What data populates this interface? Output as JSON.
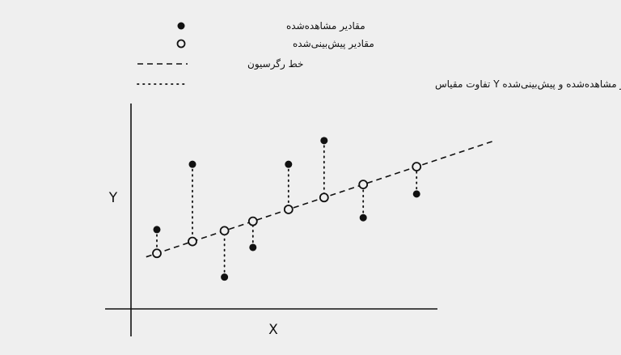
{
  "legend": {
    "observed": "مقادیر مشاهده‌شده",
    "predicted": "مقادیر پیش‌بینی‌شده",
    "regression": "خط رگرسیون",
    "residual": "بین مقادیر مشاهده‌شده و پیش‌بینی‌شده Y تفاوت مقیاس"
  },
  "axes": {
    "x_label": "X",
    "y_label": "Y"
  },
  "colors": {
    "ink": "#111111",
    "background": "#efefef"
  },
  "chart_data": {
    "type": "scatter",
    "xlabel": "X",
    "ylabel": "Y",
    "grid": false,
    "legend_position": "top",
    "regression_line": {
      "intercept": 0.7,
      "slope": 0.2,
      "x_range": [
        0.2,
        10.0
      ]
    },
    "points": [
      {
        "x": 0.5,
        "observed": 1.2,
        "predicted": 0.8
      },
      {
        "x": 1.5,
        "observed": 2.3,
        "predicted": 1.0
      },
      {
        "x": 2.4,
        "observed": 0.4,
        "predicted": 1.18
      },
      {
        "x": 3.2,
        "observed": 0.9,
        "predicted": 1.34
      },
      {
        "x": 4.2,
        "observed": 2.3,
        "predicted": 1.54
      },
      {
        "x": 5.2,
        "observed": 2.7,
        "predicted": 1.74
      },
      {
        "x": 6.3,
        "observed": 1.4,
        "predicted": 1.96
      },
      {
        "x": 7.8,
        "observed": 1.8,
        "predicted": 2.26
      }
    ]
  }
}
